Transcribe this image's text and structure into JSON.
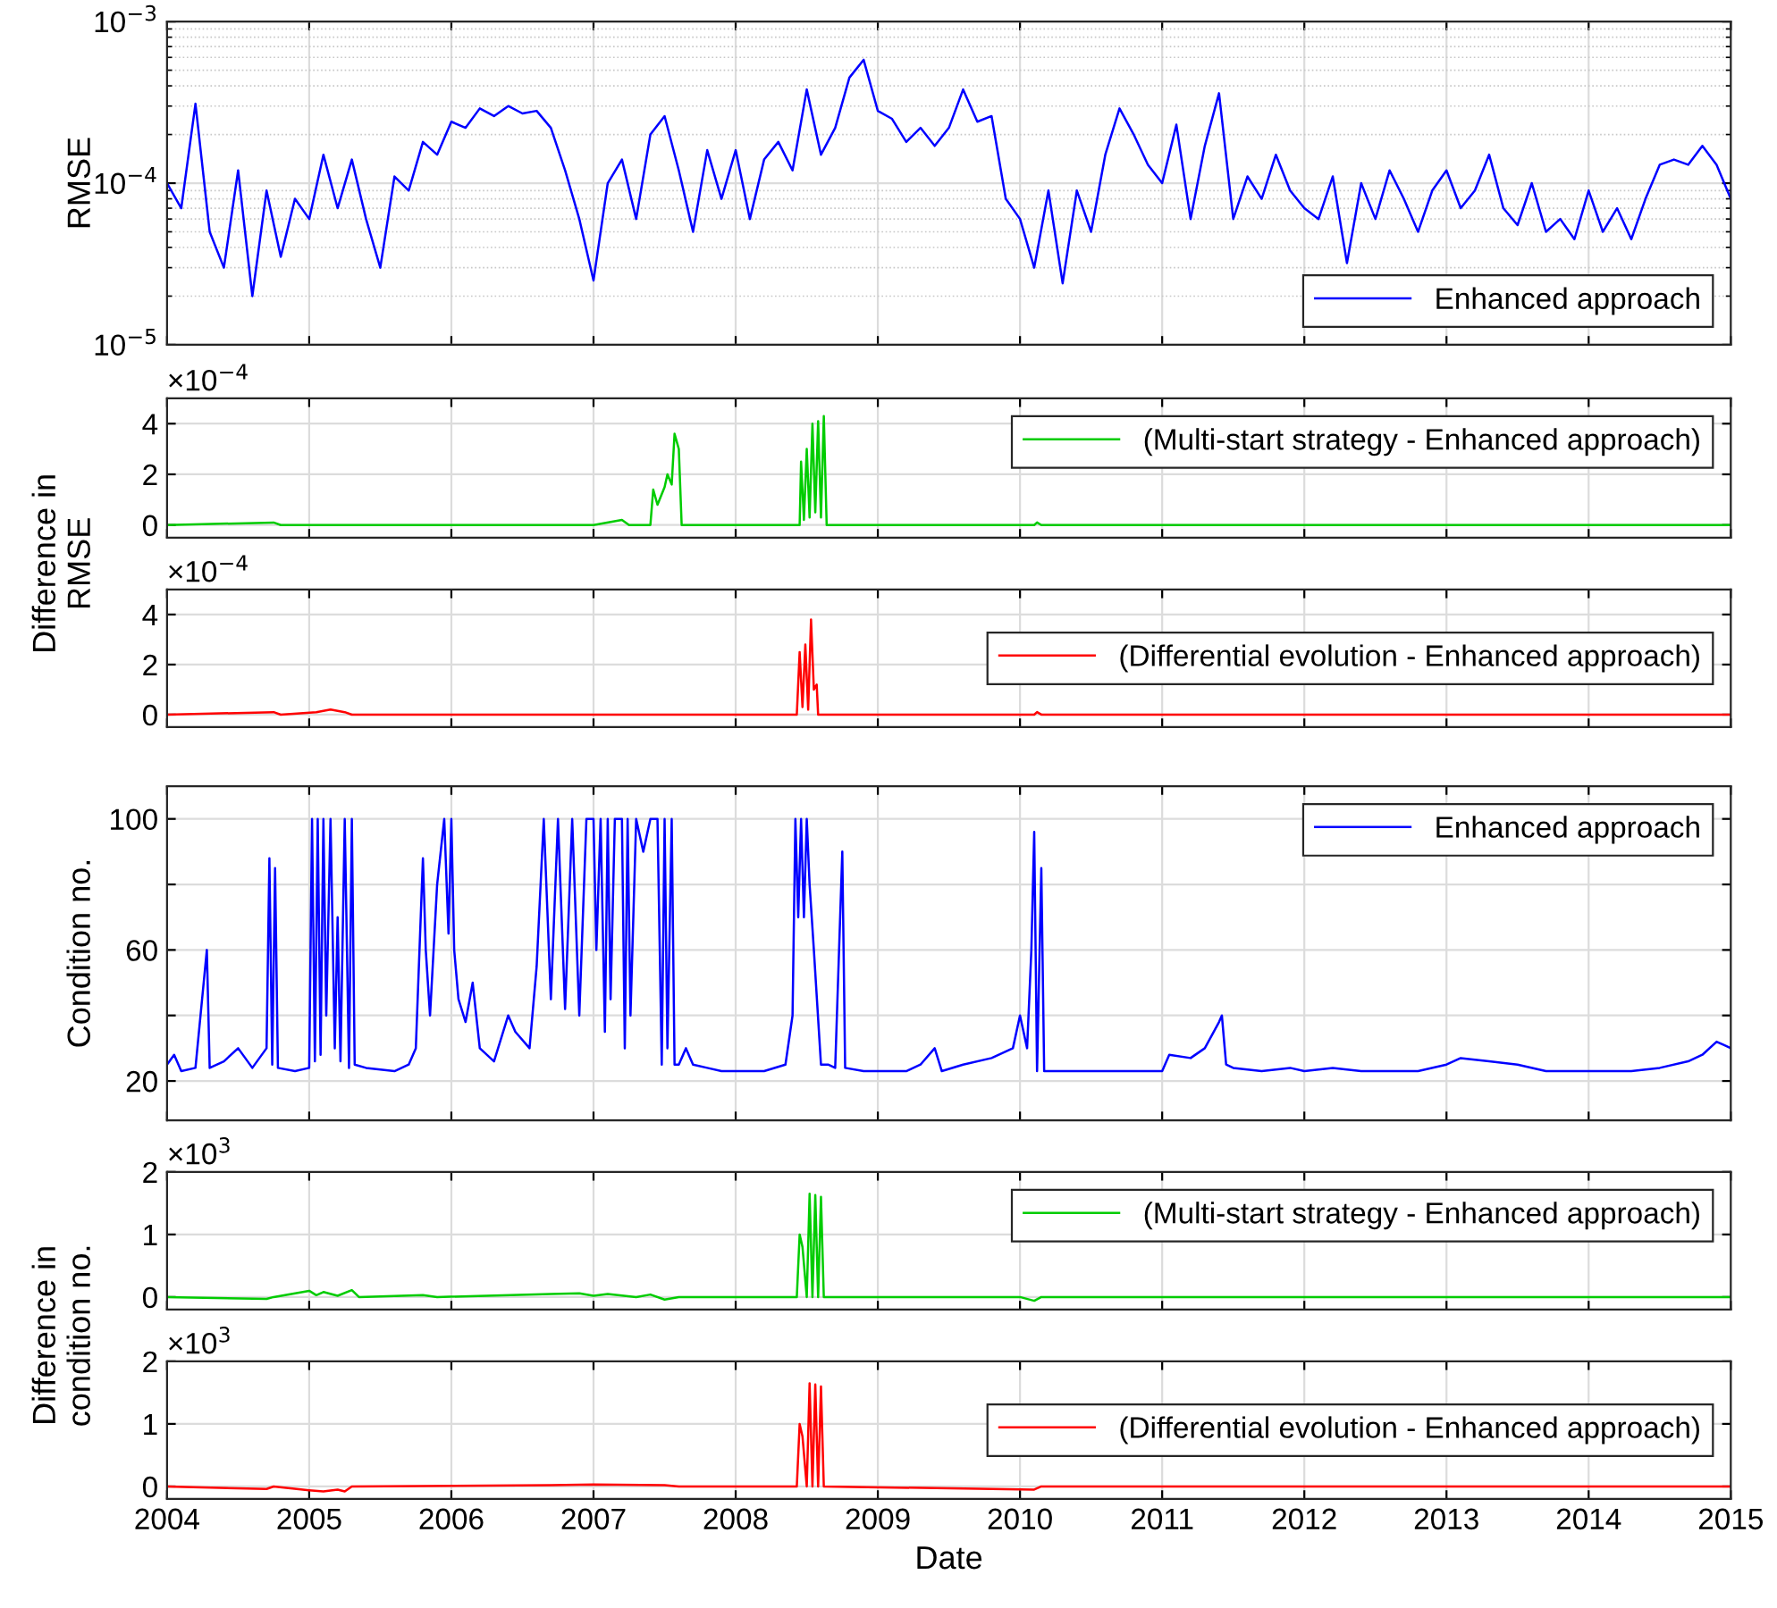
{
  "chart_data": [
    {
      "type": "line",
      "ylabel": "RMSE",
      "log": "y",
      "ylim": [
        1e-05,
        0.001
      ],
      "yticks": [
        {
          "value": 1e-05,
          "label": "10$^{−5}$"
        },
        {
          "value": 0.0001,
          "label": "10$^{−4}$"
        },
        {
          "value": 0.001,
          "label": "10$^{−3}$"
        }
      ],
      "xlim": [
        2004,
        2015
      ],
      "xticks": [
        2004,
        2005,
        2006,
        2007,
        2008,
        2009,
        2010,
        2011,
        2012,
        2013,
        2014,
        2015
      ],
      "tick_labels": "y",
      "grid": true,
      "legend": "bottom right",
      "x": [
        2004.0,
        2004.1,
        2004.2,
        2004.3,
        2004.4,
        2004.5,
        2004.6,
        2004.7,
        2004.8,
        2004.9,
        2005.0,
        2005.1,
        2005.2,
        2005.3,
        2005.4,
        2005.5,
        2005.6,
        2005.7,
        2005.8,
        2005.9,
        2006.0,
        2006.1,
        2006.2,
        2006.3,
        2006.4,
        2006.5,
        2006.6,
        2006.7,
        2006.8,
        2006.9,
        2007.0,
        2007.1,
        2007.2,
        2007.3,
        2007.4,
        2007.5,
        2007.6,
        2007.7,
        2007.8,
        2007.9,
        2008.0,
        2008.1,
        2008.2,
        2008.3,
        2008.4,
        2008.5,
        2008.6,
        2008.7,
        2008.8,
        2008.9,
        2009.0,
        2009.1,
        2009.2,
        2009.3,
        2009.4,
        2009.5,
        2009.6,
        2009.7,
        2009.8,
        2009.9,
        2010.0,
        2010.1,
        2010.2,
        2010.3,
        2010.4,
        2010.5,
        2010.6,
        2010.7,
        2010.8,
        2010.9,
        2011.0,
        2011.1,
        2011.2,
        2011.3,
        2011.4,
        2011.5,
        2011.6,
        2011.7,
        2011.8,
        2011.9,
        2012.0,
        2012.1,
        2012.2,
        2012.3,
        2012.4,
        2012.5,
        2012.6,
        2012.7,
        2012.8,
        2012.9,
        2013.0,
        2013.1,
        2013.2,
        2013.3,
        2013.4,
        2013.5,
        2013.6,
        2013.7,
        2013.8,
        2013.9,
        2014.0,
        2014.1,
        2014.2,
        2014.3,
        2014.4,
        2014.5,
        2014.6,
        2014.7,
        2014.8,
        2014.9,
        2015.0
      ],
      "series": [
        {
          "name": "Enhanced approach",
          "color": "#0000ff",
          "values": [
            0.0001,
            7e-05,
            0.00031,
            5e-05,
            3e-05,
            0.00012,
            2e-05,
            9e-05,
            3.5e-05,
            8e-05,
            6e-05,
            0.00015,
            7e-05,
            0.00014,
            6e-05,
            3e-05,
            0.00011,
            9e-05,
            0.00018,
            0.00015,
            0.00024,
            0.00022,
            0.00029,
            0.00026,
            0.0003,
            0.00027,
            0.00028,
            0.00022,
            0.00012,
            6e-05,
            2.5e-05,
            0.0001,
            0.00014,
            6e-05,
            0.0002,
            0.00026,
            0.00012,
            5e-05,
            0.00016,
            8e-05,
            0.00016,
            6e-05,
            0.00014,
            0.00018,
            0.00012,
            0.00038,
            0.00015,
            0.00022,
            0.00045,
            0.00058,
            0.00028,
            0.00025,
            0.00018,
            0.00022,
            0.00017,
            0.00022,
            0.00038,
            0.00024,
            0.00026,
            8e-05,
            6e-05,
            3e-05,
            9e-05,
            2.4e-05,
            9e-05,
            5e-05,
            0.00015,
            0.00029,
            0.0002,
            0.00013,
            0.0001,
            0.00023,
            6e-05,
            0.00017,
            0.00036,
            6e-05,
            0.00011,
            8e-05,
            0.00015,
            9e-05,
            7e-05,
            6e-05,
            0.00011,
            3.2e-05,
            0.0001,
            6e-05,
            0.00012,
            8e-05,
            5e-05,
            9e-05,
            0.00012,
            7e-05,
            9e-05,
            0.00015,
            7e-05,
            5.5e-05,
            0.0001,
            5e-05,
            6e-05,
            4.5e-05,
            9e-05,
            5e-05,
            7e-05,
            4.5e-05,
            8e-05,
            0.00013,
            0.00014,
            0.00013,
            0.00017,
            0.00013,
            8e-05
          ]
        }
      ]
    },
    {
      "type": "line",
      "ylabel": "Difference in\nRMSE",
      "annotations": [
        "×10$^{−4}$"
      ],
      "ylim": [
        -0.5,
        5
      ],
      "yticks": [
        0,
        2,
        4
      ],
      "xlim": [
        2004,
        2015
      ],
      "xticks": [
        2004,
        2005,
        2006,
        2007,
        2008,
        2009,
        2010,
        2011,
        2012,
        2013,
        2014,
        2015
      ],
      "tick_labels": "y",
      "grid": true,
      "legend": "top right",
      "x": [
        2004.0,
        2004.75,
        2004.8,
        2007.0,
        2007.2,
        2007.25,
        2007.4,
        2007.42,
        2007.45,
        2007.5,
        2007.52,
        2007.55,
        2007.57,
        2007.6,
        2007.62,
        2008.45,
        2008.46,
        2008.48,
        2008.5,
        2008.52,
        2008.54,
        2008.56,
        2008.58,
        2008.6,
        2008.62,
        2008.64,
        2010.1,
        2010.12,
        2010.15,
        2015.0
      ],
      "series": [
        {
          "name": "(Multi-start strategy - Enhanced approach)",
          "color": "#00cc00",
          "values": [
            0,
            0.1,
            0,
            0,
            0.2,
            0,
            0,
            1.4,
            0.8,
            1.5,
            2.0,
            1.6,
            3.6,
            3.0,
            0,
            0,
            2.5,
            0.2,
            3.0,
            0.3,
            4.0,
            0.5,
            4.1,
            0.3,
            4.3,
            0,
            0,
            0.1,
            0,
            0
          ]
        }
      ]
    },
    {
      "type": "line",
      "annotations": [
        "×10$^{−4}$"
      ],
      "ylim": [
        -0.5,
        5
      ],
      "yticks": [
        0,
        2,
        4
      ],
      "xlim": [
        2004,
        2015
      ],
      "xticks": [
        2004,
        2005,
        2006,
        2007,
        2008,
        2009,
        2010,
        2011,
        2012,
        2013,
        2014,
        2015
      ],
      "tick_labels": "y",
      "grid": true,
      "legend": "right",
      "x": [
        2004.0,
        2004.75,
        2004.8,
        2005.05,
        2005.15,
        2005.25,
        2005.3,
        2008.43,
        2008.45,
        2008.47,
        2008.49,
        2008.51,
        2008.53,
        2008.55,
        2008.57,
        2008.58,
        2010.1,
        2010.12,
        2010.15,
        2015.0
      ],
      "series": [
        {
          "name": "(Differential evolution - Enhanced approach)",
          "color": "#ff0000",
          "values": [
            0,
            0.1,
            0,
            0.1,
            0.2,
            0.1,
            0,
            0,
            2.5,
            0.3,
            2.8,
            0.2,
            3.8,
            1.0,
            1.2,
            0,
            0,
            0.1,
            0,
            0
          ]
        }
      ]
    },
    {
      "type": "line",
      "ylabel": "Condition no.",
      "ylim": [
        8,
        110
      ],
      "yticks": [
        20,
        {
          "value": 40,
          "label": null
        },
        60,
        {
          "value": 80,
          "label": null
        },
        100
      ],
      "xlim": [
        2004,
        2015
      ],
      "xticks": [
        2004,
        2005,
        2006,
        2007,
        2008,
        2009,
        2010,
        2011,
        2012,
        2013,
        2014,
        2015
      ],
      "tick_labels": "y",
      "grid": true,
      "legend": "top right",
      "x": [
        2004.0,
        2004.05,
        2004.1,
        2004.2,
        2004.28,
        2004.3,
        2004.4,
        2004.5,
        2004.6,
        2004.7,
        2004.72,
        2004.74,
        2004.76,
        2004.78,
        2004.9,
        2005.0,
        2005.02,
        2005.04,
        2005.06,
        2005.08,
        2005.1,
        2005.12,
        2005.15,
        2005.18,
        2005.2,
        2005.22,
        2005.25,
        2005.28,
        2005.3,
        2005.32,
        2005.4,
        2005.6,
        2005.7,
        2005.75,
        2005.8,
        2005.82,
        2005.85,
        2005.9,
        2005.95,
        2005.98,
        2006.0,
        2006.02,
        2006.05,
        2006.1,
        2006.15,
        2006.2,
        2006.3,
        2006.4,
        2006.45,
        2006.55,
        2006.6,
        2006.65,
        2006.7,
        2006.75,
        2006.8,
        2006.85,
        2006.9,
        2006.95,
        2007.0,
        2007.02,
        2007.05,
        2007.08,
        2007.1,
        2007.12,
        2007.15,
        2007.2,
        2007.22,
        2007.24,
        2007.26,
        2007.3,
        2007.35,
        2007.4,
        2007.45,
        2007.48,
        2007.5,
        2007.52,
        2007.55,
        2007.57,
        2007.6,
        2007.65,
        2007.7,
        2007.8,
        2007.9,
        2008.0,
        2008.2,
        2008.35,
        2008.4,
        2008.42,
        2008.44,
        2008.46,
        2008.48,
        2008.5,
        2008.52,
        2008.55,
        2008.6,
        2008.65,
        2008.7,
        2008.75,
        2008.77,
        2008.9,
        2009.0,
        2009.2,
        2009.3,
        2009.4,
        2009.45,
        2009.6,
        2009.8,
        2009.95,
        2010.0,
        2010.05,
        2010.08,
        2010.1,
        2010.12,
        2010.15,
        2010.17,
        2010.3,
        2010.5,
        2010.7,
        2010.9,
        2011.0,
        2011.05,
        2011.2,
        2011.3,
        2011.4,
        2011.42,
        2011.45,
        2011.5,
        2011.7,
        2011.9,
        2012.0,
        2012.2,
        2012.4,
        2012.6,
        2012.8,
        2013.0,
        2013.1,
        2013.3,
        2013.5,
        2013.7,
        2013.9,
        2014.0,
        2014.3,
        2014.5,
        2014.7,
        2014.8,
        2014.9,
        2014.95,
        2015.0
      ],
      "series": [
        {
          "name": "Enhanced approach",
          "color": "#0000ff",
          "values": [
            25,
            28,
            23,
            24,
            60,
            24,
            26,
            30,
            24,
            30,
            88,
            25,
            85,
            24,
            23,
            24,
            100,
            26,
            100,
            28,
            100,
            40,
            100,
            30,
            70,
            26,
            100,
            24,
            100,
            25,
            24,
            23,
            25,
            30,
            88,
            60,
            40,
            80,
            100,
            65,
            100,
            60,
            45,
            38,
            50,
            30,
            26,
            40,
            35,
            30,
            55,
            100,
            45,
            100,
            42,
            100,
            40,
            100,
            100,
            60,
            100,
            35,
            100,
            45,
            100,
            100,
            30,
            100,
            40,
            100,
            90,
            100,
            100,
            25,
            100,
            30,
            100,
            25,
            25,
            30,
            25,
            24,
            23,
            23,
            23,
            25,
            40,
            100,
            70,
            100,
            70,
            100,
            80,
            60,
            25,
            25,
            24,
            90,
            24,
            23,
            23,
            23,
            25,
            30,
            23,
            25,
            27,
            30,
            40,
            30,
            60,
            96,
            23,
            85,
            23,
            23,
            23,
            23,
            23,
            23,
            28,
            27,
            30,
            38,
            40,
            25,
            24,
            23,
            24,
            23,
            24,
            23,
            23,
            23,
            25,
            27,
            26,
            25,
            23,
            23,
            23,
            23,
            24,
            26,
            28,
            32,
            31,
            30
          ]
        }
      ]
    },
    {
      "type": "line",
      "ylabel": "Difference in\ncondition no.",
      "annotations": [
        "×10$^{3}$"
      ],
      "ylim": [
        -0.2,
        2
      ],
      "yticks": [
        0,
        1,
        2
      ],
      "xlim": [
        2004,
        2015
      ],
      "xticks": [
        2004,
        2005,
        2006,
        2007,
        2008,
        2009,
        2010,
        2011,
        2012,
        2013,
        2014,
        2015
      ],
      "tick_labels": "y",
      "grid": true,
      "legend": "top right",
      "x": [
        2004.0,
        2004.7,
        2004.75,
        2005.0,
        2005.05,
        2005.1,
        2005.2,
        2005.3,
        2005.35,
        2005.8,
        2005.9,
        2006.7,
        2006.9,
        2007.0,
        2007.1,
        2007.3,
        2007.4,
        2007.5,
        2007.6,
        2008.43,
        2008.45,
        2008.47,
        2008.5,
        2008.52,
        2008.54,
        2008.56,
        2008.58,
        2008.6,
        2008.62,
        2010.0,
        2010.1,
        2010.15,
        2015.0
      ],
      "series": [
        {
          "name": "(Multi-start strategy - Enhanced approach)",
          "color": "#00cc00",
          "values": [
            0,
            -0.03,
            0,
            0.1,
            0.03,
            0.08,
            0.02,
            0.11,
            0,
            0.03,
            0,
            0.05,
            0.06,
            0.02,
            0.05,
            0,
            0.04,
            -0.04,
            0,
            0,
            1.0,
            0.8,
            0,
            1.65,
            0,
            1.63,
            0,
            1.6,
            0,
            0,
            -0.06,
            0,
            0
          ]
        }
      ]
    },
    {
      "type": "line",
      "xlabel": "Date",
      "annotations": [
        "×10$^{3}$"
      ],
      "ylim": [
        -0.2,
        2
      ],
      "yticks": [
        0,
        1,
        2
      ],
      "xlim": [
        2004,
        2015
      ],
      "xticks": [
        2004,
        2005,
        2006,
        2007,
        2008,
        2009,
        2010,
        2011,
        2012,
        2013,
        2014,
        2015
      ],
      "grid": true,
      "legend": "right",
      "x": [
        2004.0,
        2004.7,
        2004.75,
        2005.0,
        2005.1,
        2005.2,
        2005.25,
        2005.3,
        2006.7,
        2007.0,
        2007.5,
        2007.6,
        2008.43,
        2008.45,
        2008.47,
        2008.5,
        2008.52,
        2008.54,
        2008.56,
        2008.58,
        2008.6,
        2008.62,
        2010.1,
        2010.15,
        2015.0
      ],
      "series": [
        {
          "name": "(Differential evolution - Enhanced approach)",
          "color": "#ff0000",
          "values": [
            0,
            -0.04,
            0,
            -0.06,
            -0.08,
            -0.05,
            -0.08,
            0,
            0.02,
            0.03,
            0.02,
            0,
            0,
            1.0,
            0.8,
            0,
            1.65,
            0,
            1.63,
            0,
            1.6,
            0,
            -0.05,
            0,
            0
          ]
        }
      ]
    }
  ]
}
